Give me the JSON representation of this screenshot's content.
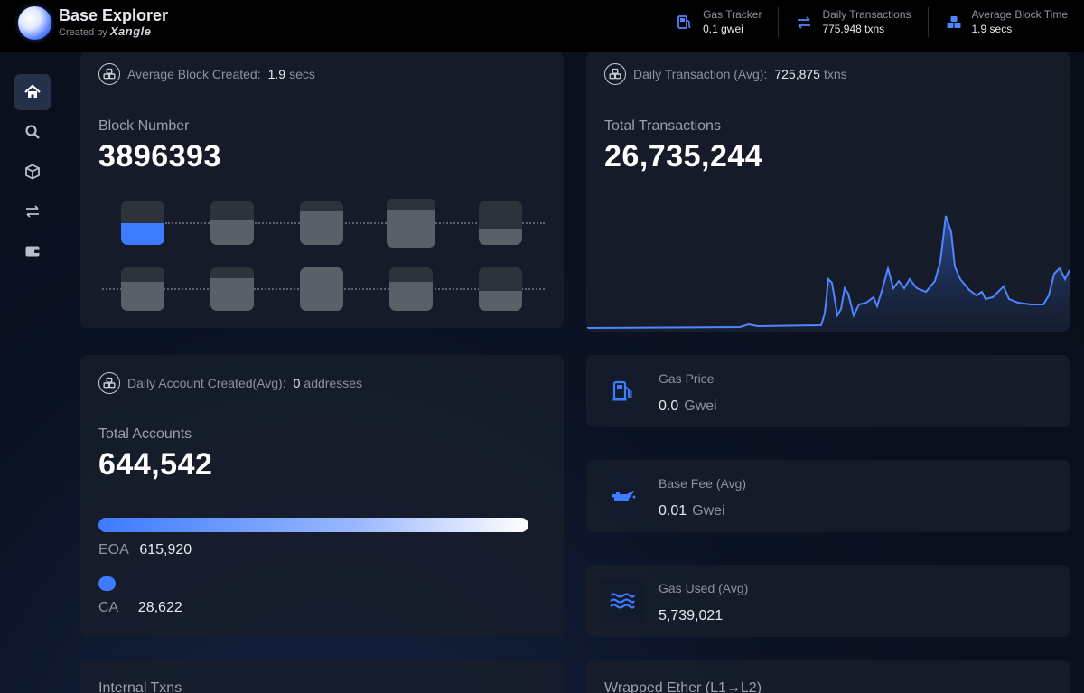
{
  "header": {
    "brand_title": "Base Explorer",
    "brand_sub_prefix": "Created by",
    "brand_sub_name": "Xangle",
    "stats": [
      {
        "icon": "fuel-pump-icon",
        "label": "Gas Tracker",
        "value": "0.1 gwei"
      },
      {
        "icon": "transfer-arrows-icon",
        "label": "Daily Transactions",
        "value": "775,948 txns"
      },
      {
        "icon": "cubes-icon",
        "label": "Average Block Time",
        "value": "1.9 secs"
      }
    ]
  },
  "sidebar": {
    "items": [
      {
        "icon": "home-icon",
        "active": true
      },
      {
        "icon": "search-icon",
        "active": false
      },
      {
        "icon": "cube-icon",
        "active": false
      },
      {
        "icon": "transfer-icon",
        "active": false
      },
      {
        "icon": "wallet-icon",
        "active": false
      }
    ]
  },
  "block_card": {
    "head_label": "Average Block Created:",
    "head_value": "1.9",
    "head_unit": "secs",
    "big_label": "Block Number",
    "big_value": "3896393"
  },
  "tx_card": {
    "head_label": "Daily Transaction (Avg):",
    "head_value": "725,875",
    "head_unit": "txns",
    "big_label": "Total Transactions",
    "big_value": "26,735,244"
  },
  "account_card": {
    "head_label": "Daily Account Created(Avg):",
    "head_value": "0",
    "head_unit": "addresses",
    "big_label": "Total Accounts",
    "big_value": "644,542",
    "eoa_label": "EOA",
    "eoa_value": "615,920",
    "ca_label": "CA",
    "ca_value": "28,622"
  },
  "gas_price": {
    "label": "Gas Price",
    "value": "0.0",
    "unit": "Gwei"
  },
  "base_fee": {
    "label": "Base Fee (Avg)",
    "value": "0.01",
    "unit": "Gwei"
  },
  "gas_used": {
    "label": "Gas Used (Avg)",
    "value": "5,739,021"
  },
  "internal_txns": {
    "label": "Internal Txns"
  },
  "wrapped_ether": {
    "label": "Wrapped Ether (L1→L2)"
  },
  "colors": {
    "accent": "#3d7bff",
    "card": "#181d2a",
    "topbar": "#000000"
  }
}
